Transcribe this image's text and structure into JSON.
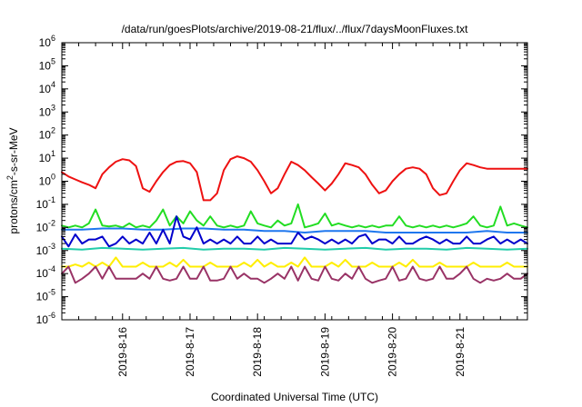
{
  "chart_data": {
    "type": "line",
    "title": "/data/run/goesPlots/archive/2019-08-21/flux/../flux/7daysMoonFluxes.txt",
    "xlabel": "Coordinated Universal Time (UTC)",
    "ylabel_prefix": "protons/cm",
    "ylabel_sup": "2",
    "ylabel_suffix": "-s-sr-MeV",
    "y_scale": "log",
    "ylim": [
      1e-06,
      1000000.0
    ],
    "xlim": [
      0,
      6.9
    ],
    "y_ticks": [
      {
        "value": 1000000.0,
        "base": "10",
        "exp": "6"
      },
      {
        "value": 100000.0,
        "base": "10",
        "exp": "5"
      },
      {
        "value": 10000.0,
        "base": "10",
        "exp": "4"
      },
      {
        "value": 1000.0,
        "base": "10",
        "exp": "3"
      },
      {
        "value": 100.0,
        "base": "10",
        "exp": "2"
      },
      {
        "value": 10.0,
        "base": "10",
        "exp": "1"
      },
      {
        "value": 1.0,
        "base": "10",
        "exp": "0"
      },
      {
        "value": 0.1,
        "base": "10",
        "exp": "-1"
      },
      {
        "value": 0.01,
        "base": "10",
        "exp": "-2"
      },
      {
        "value": 0.001,
        "base": "10",
        "exp": "-3"
      },
      {
        "value": 0.0001,
        "base": "10",
        "exp": "-4"
      },
      {
        "value": 1e-05,
        "base": "10",
        "exp": "-5"
      },
      {
        "value": 1e-06,
        "base": "10",
        "exp": "-6"
      }
    ],
    "x_ticks": [
      {
        "value": 0.9,
        "label": "2019-8-16"
      },
      {
        "value": 1.9,
        "label": "2019-8-17"
      },
      {
        "value": 2.9,
        "label": "2019-8-18"
      },
      {
        "value": 3.9,
        "label": "2019-8-19"
      },
      {
        "value": 4.9,
        "label": "2019-8-20"
      },
      {
        "value": 5.9,
        "label": "2019-8-21"
      }
    ],
    "grid": false,
    "series": [
      {
        "color": "#ee1111",
        "x": [
          0,
          0.1,
          0.2,
          0.3,
          0.4,
          0.5,
          0.6,
          0.7,
          0.8,
          0.9,
          1,
          1.1,
          1.2,
          1.3,
          1.4,
          1.5,
          1.6,
          1.7,
          1.8,
          1.9,
          2,
          2.1,
          2.2,
          2.3,
          2.4,
          2.5,
          2.6,
          2.7,
          2.8,
          2.9,
          3,
          3.1,
          3.2,
          3.3,
          3.4,
          3.5,
          3.6,
          3.7,
          3.8,
          3.9,
          4,
          4.1,
          4.2,
          4.3,
          4.4,
          4.5,
          4.6,
          4.7,
          4.8,
          4.9,
          5,
          5.1,
          5.2,
          5.3,
          5.4,
          5.5,
          5.6,
          5.7,
          5.8,
          5.9,
          6,
          6.1,
          6.2,
          6.3,
          6.4,
          6.5,
          6.6,
          6.7,
          6.8,
          6.9
        ],
        "y": [
          2.5,
          1.6,
          1.2,
          0.9,
          0.7,
          0.5,
          2,
          4,
          7,
          9,
          8,
          4.5,
          0.5,
          0.35,
          1,
          2.5,
          5,
          7,
          7.5,
          6,
          2.5,
          0.15,
          0.15,
          0.3,
          3,
          9,
          12,
          10,
          7,
          3,
          1,
          0.3,
          0.5,
          2,
          7,
          5,
          3,
          1.5,
          0.8,
          0.4,
          0.8,
          2,
          6,
          5,
          4,
          2,
          0.7,
          0.3,
          0.4,
          1,
          2,
          3.5,
          4,
          3.5,
          2,
          0.5,
          0.25,
          0.3,
          1,
          3,
          6,
          5,
          4,
          3.5,
          3.5,
          3.5,
          3.5,
          3.5,
          3.5,
          3.5
        ]
      },
      {
        "color": "#22dd22",
        "x": [
          0,
          0.1,
          0.2,
          0.3,
          0.4,
          0.5,
          0.6,
          0.7,
          0.8,
          0.9,
          1,
          1.1,
          1.2,
          1.3,
          1.4,
          1.5,
          1.6,
          1.7,
          1.8,
          1.9,
          2,
          2.1,
          2.2,
          2.3,
          2.4,
          2.5,
          2.6,
          2.7,
          2.8,
          2.9,
          3,
          3.1,
          3.2,
          3.3,
          3.4,
          3.5,
          3.6,
          3.7,
          3.8,
          3.9,
          4,
          4.1,
          4.2,
          4.3,
          4.4,
          4.5,
          4.6,
          4.7,
          4.8,
          4.9,
          5,
          5.1,
          5.2,
          5.3,
          5.4,
          5.5,
          5.6,
          5.7,
          5.8,
          5.9,
          6,
          6.1,
          6.2,
          6.3,
          6.4,
          6.5,
          6.6,
          6.7,
          6.8,
          6.9
        ],
        "y": [
          0.012,
          0.01,
          0.012,
          0.01,
          0.015,
          0.06,
          0.012,
          0.011,
          0.012,
          0.01,
          0.015,
          0.01,
          0.012,
          0.01,
          0.02,
          0.06,
          0.012,
          0.03,
          0.015,
          0.05,
          0.02,
          0.012,
          0.03,
          0.012,
          0.01,
          0.012,
          0.01,
          0.012,
          0.05,
          0.015,
          0.012,
          0.01,
          0.02,
          0.012,
          0.015,
          0.1,
          0.01,
          0.012,
          0.015,
          0.04,
          0.012,
          0.015,
          0.012,
          0.01,
          0.012,
          0.01,
          0.012,
          0.01,
          0.012,
          0.012,
          0.03,
          0.012,
          0.01,
          0.012,
          0.01,
          0.012,
          0.01,
          0.012,
          0.01,
          0.012,
          0.015,
          0.03,
          0.012,
          0.01,
          0.012,
          0.08,
          0.012,
          0.015,
          0.012,
          0.01
        ]
      },
      {
        "color": "#1f77ee",
        "x": [
          0,
          0.3,
          0.6,
          0.9,
          1.2,
          1.5,
          1.8,
          2.1,
          2.4,
          2.7,
          3,
          3.3,
          3.6,
          3.9,
          4.2,
          4.5,
          4.8,
          5.1,
          5.4,
          5.7,
          6,
          6.3,
          6.6,
          6.9
        ],
        "y": [
          0.008,
          0.008,
          0.009,
          0.009,
          0.008,
          0.008,
          0.009,
          0.009,
          0.008,
          0.008,
          0.007,
          0.007,
          0.006,
          0.007,
          0.007,
          0.007,
          0.006,
          0.006,
          0.006,
          0.006,
          0.006,
          0.007,
          0.006,
          0.006
        ]
      },
      {
        "color": "#0000cc",
        "x": [
          0,
          0.1,
          0.2,
          0.3,
          0.4,
          0.5,
          0.6,
          0.7,
          0.8,
          0.9,
          1,
          1.1,
          1.2,
          1.3,
          1.4,
          1.5,
          1.6,
          1.7,
          1.8,
          1.9,
          2,
          2.1,
          2.2,
          2.3,
          2.4,
          2.5,
          2.6,
          2.7,
          2.8,
          2.9,
          3,
          3.1,
          3.2,
          3.3,
          3.4,
          3.5,
          3.6,
          3.7,
          3.8,
          3.9,
          4,
          4.1,
          4.2,
          4.3,
          4.4,
          4.5,
          4.6,
          4.7,
          4.8,
          4.9,
          5,
          5.1,
          5.2,
          5.3,
          5.4,
          5.5,
          5.6,
          5.7,
          5.8,
          5.9,
          6,
          6.1,
          6.2,
          6.3,
          6.4,
          6.5,
          6.6,
          6.7,
          6.8,
          6.9
        ],
        "y": [
          0.004,
          0.0015,
          0.005,
          0.002,
          0.003,
          0.003,
          0.004,
          0.0015,
          0.002,
          0.004,
          0.002,
          0.003,
          0.002,
          0.006,
          0.002,
          0.008,
          0.002,
          0.03,
          0.004,
          0.003,
          0.01,
          0.002,
          0.003,
          0.002,
          0.003,
          0.002,
          0.004,
          0.002,
          0.002,
          0.004,
          0.002,
          0.003,
          0.002,
          0.002,
          0.002,
          0.006,
          0.003,
          0.004,
          0.003,
          0.002,
          0.003,
          0.002,
          0.003,
          0.002,
          0.004,
          0.005,
          0.002,
          0.003,
          0.003,
          0.002,
          0.004,
          0.002,
          0.002,
          0.003,
          0.004,
          0.003,
          0.002,
          0.003,
          0.002,
          0.002,
          0.004,
          0.002,
          0.002,
          0.003,
          0.004,
          0.002,
          0.003,
          0.002,
          0.003,
          0.002
        ]
      },
      {
        "color": "#22ccaa",
        "x": [
          0,
          0.3,
          0.6,
          0.9,
          1.2,
          1.5,
          1.8,
          2.1,
          2.4,
          2.7,
          3,
          3.3,
          3.6,
          3.9,
          4.2,
          4.5,
          4.8,
          5.1,
          5.4,
          5.7,
          6,
          6.3,
          6.6,
          6.9
        ],
        "y": [
          0.0012,
          0.0011,
          0.0013,
          0.0012,
          0.0011,
          0.0012,
          0.0013,
          0.0011,
          0.0012,
          0.0012,
          0.0011,
          0.0013,
          0.0012,
          0.0011,
          0.0012,
          0.0013,
          0.0011,
          0.0012,
          0.0012,
          0.0011,
          0.0013,
          0.0012,
          0.0011,
          0.0012
        ]
      },
      {
        "color": "#ffee00",
        "x": [
          0,
          0.1,
          0.2,
          0.3,
          0.4,
          0.5,
          0.6,
          0.7,
          0.8,
          0.9,
          1,
          1.1,
          1.2,
          1.3,
          1.4,
          1.5,
          1.6,
          1.7,
          1.8,
          1.9,
          2,
          2.1,
          2.2,
          2.3,
          2.4,
          2.5,
          2.6,
          2.7,
          2.8,
          2.9,
          3,
          3.1,
          3.2,
          3.3,
          3.4,
          3.5,
          3.6,
          3.7,
          3.8,
          3.9,
          4,
          4.1,
          4.2,
          4.3,
          4.4,
          4.5,
          4.6,
          4.7,
          4.8,
          4.9,
          5,
          5.1,
          5.2,
          5.3,
          5.4,
          5.5,
          5.6,
          5.7,
          5.8,
          5.9,
          6,
          6.1,
          6.2,
          6.3,
          6.4,
          6.5,
          6.6,
          6.7,
          6.8,
          6.9
        ],
        "y": [
          0.0002,
          0.0002,
          0.00025,
          0.0002,
          0.0003,
          0.0002,
          0.0003,
          0.0002,
          0.0005,
          0.0002,
          0.0002,
          0.0002,
          0.0003,
          0.0002,
          0.0002,
          0.0002,
          0.0003,
          0.0002,
          0.0004,
          0.0002,
          0.0002,
          0.0002,
          0.0003,
          0.0002,
          0.0002,
          0.0002,
          0.0002,
          0.0003,
          0.0002,
          0.0004,
          0.0002,
          0.0003,
          0.0002,
          0.0002,
          0.0003,
          0.0002,
          0.0005,
          0.0002,
          0.0002,
          0.0002,
          0.0003,
          0.0002,
          0.0004,
          0.0002,
          0.0002,
          0.0002,
          0.0003,
          0.0002,
          0.0002,
          0.0002,
          0.0003,
          0.0002,
          0.0004,
          0.0002,
          0.0002,
          0.0002,
          0.0003,
          0.0002,
          0.0002,
          0.0002,
          0.0002,
          0.0003,
          0.0002,
          0.0002,
          0.0002,
          0.0002,
          0.0003,
          0.0002,
          0.0002,
          0.0002
        ]
      },
      {
        "color": "#993366",
        "x": [
          0,
          0.1,
          0.2,
          0.3,
          0.4,
          0.5,
          0.6,
          0.7,
          0.8,
          0.9,
          1,
          1.1,
          1.2,
          1.3,
          1.4,
          1.5,
          1.6,
          1.7,
          1.8,
          1.9,
          2,
          2.1,
          2.2,
          2.3,
          2.4,
          2.5,
          2.6,
          2.7,
          2.8,
          2.9,
          3,
          3.1,
          3.2,
          3.3,
          3.4,
          3.5,
          3.6,
          3.7,
          3.8,
          3.9,
          4,
          4.1,
          4.2,
          4.3,
          4.4,
          4.5,
          4.6,
          4.7,
          4.8,
          4.9,
          5,
          5.1,
          5.2,
          5.3,
          5.4,
          5.5,
          5.6,
          5.7,
          5.8,
          5.9,
          6,
          6.1,
          6.2,
          6.3,
          6.4,
          6.5,
          6.6,
          6.7,
          6.8,
          6.9
        ],
        "y": [
          0.0001,
          0.0002,
          4e-05,
          6e-05,
          0.0001,
          0.0002,
          6e-05,
          0.0002,
          6e-05,
          6e-05,
          6e-05,
          6e-05,
          0.0001,
          6e-05,
          0.0002,
          6e-05,
          5e-05,
          6e-05,
          0.0002,
          6e-05,
          6e-05,
          0.0002,
          5e-05,
          5e-05,
          6e-05,
          0.0002,
          6e-05,
          0.0001,
          6e-05,
          6e-05,
          4e-05,
          6e-05,
          0.0001,
          6e-05,
          0.0002,
          5e-05,
          0.0002,
          6e-05,
          5e-05,
          0.0002,
          6e-05,
          5e-05,
          0.0001,
          6e-05,
          0.0002,
          6e-05,
          4e-05,
          5e-05,
          6e-05,
          0.0002,
          5e-05,
          6e-05,
          0.0002,
          6e-05,
          5e-05,
          6e-05,
          0.0002,
          6e-05,
          6e-05,
          0.0001,
          0.0002,
          6e-05,
          4e-05,
          6e-05,
          5e-05,
          6e-05,
          0.0001,
          6e-05,
          6e-05,
          0.0001
        ]
      }
    ]
  }
}
